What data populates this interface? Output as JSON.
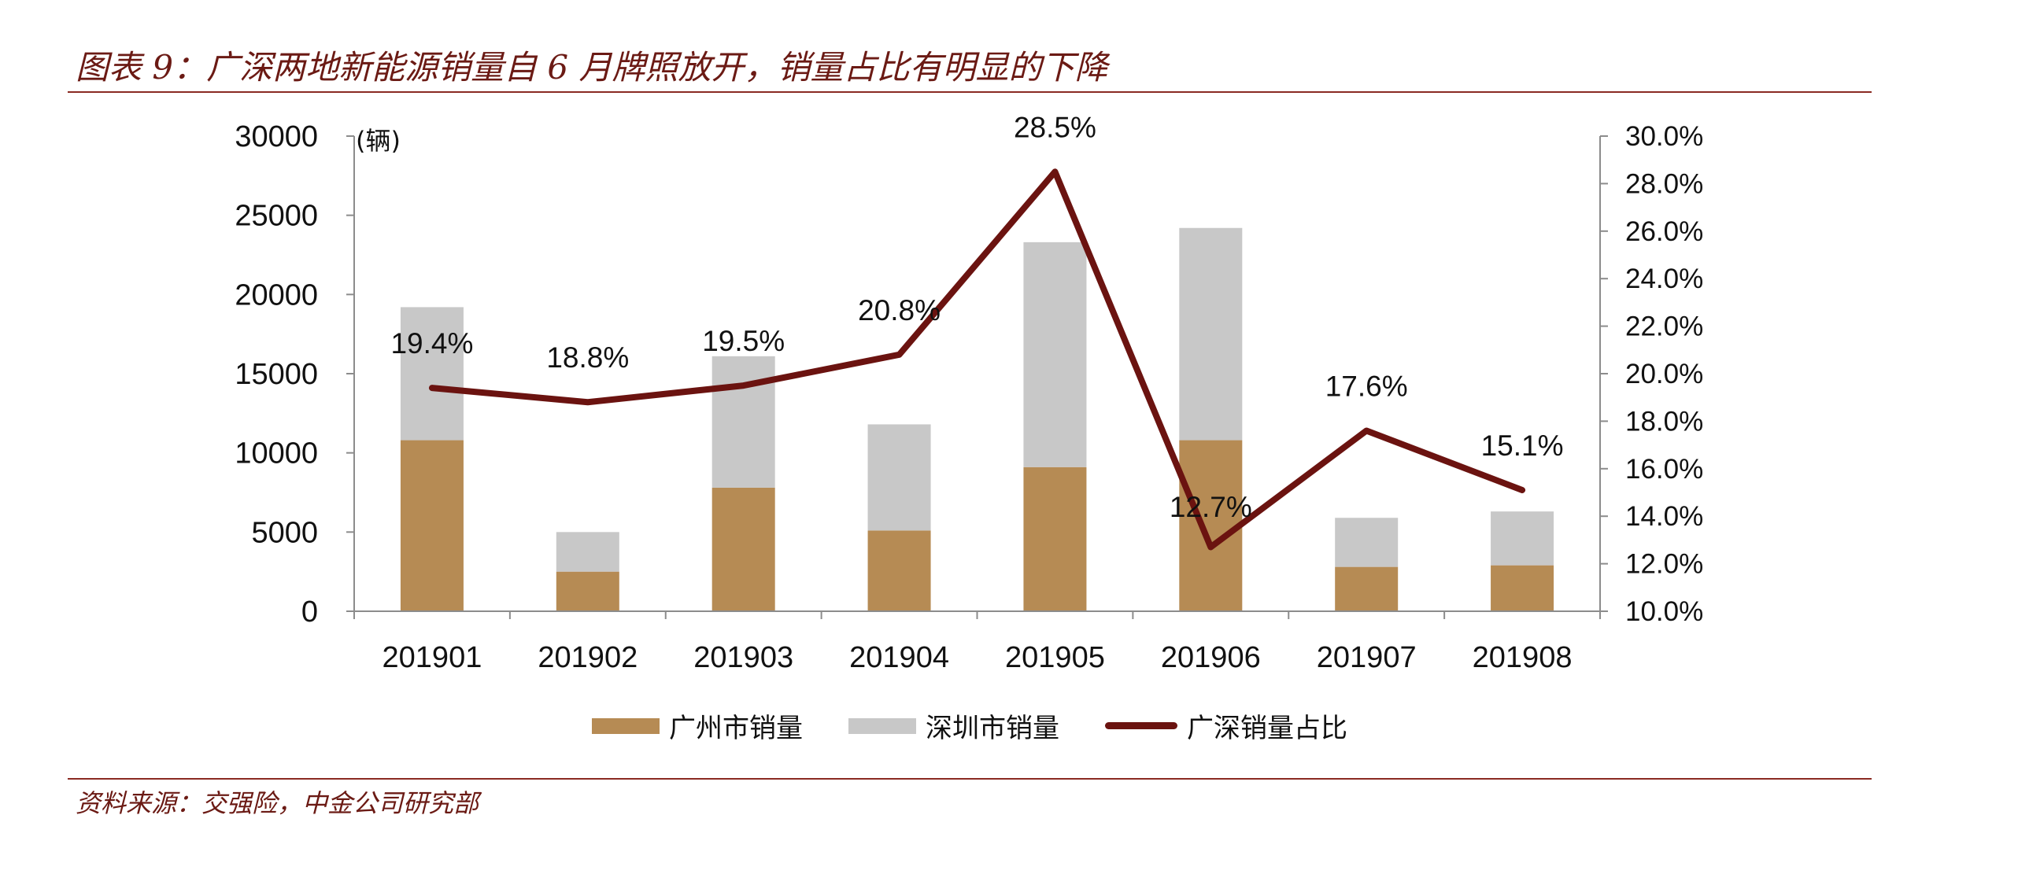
{
  "title": "图表 9：广深两地新能源销量自 6 月牌照放开，销量占比有明显的下降",
  "source": "资料来源：交强险，中金公司研究部",
  "colors": {
    "guangzhou": "#b68b54",
    "shenzhen": "#c8c8c8",
    "share": "#6b1310",
    "rule": "#8a2a22",
    "axis": "#8c8c8c"
  },
  "chart_data": {
    "type": "bar",
    "stacked": true,
    "unit_label": "(辆)",
    "categories": [
      "201901",
      "201902",
      "201903",
      "201904",
      "201905",
      "201906",
      "201907",
      "201908"
    ],
    "series": [
      {
        "name": "广州市销量",
        "type": "bar",
        "axis": "left",
        "values": [
          10800,
          2500,
          7800,
          5100,
          9100,
          10800,
          2800,
          2900
        ]
      },
      {
        "name": "深圳市销量",
        "type": "bar",
        "axis": "left",
        "values": [
          8400,
          2500,
          8300,
          6700,
          14200,
          13400,
          3100,
          3400
        ]
      },
      {
        "name": "广深销量占比",
        "type": "line",
        "axis": "right",
        "values": [
          19.4,
          18.8,
          19.5,
          20.8,
          28.5,
          12.7,
          17.6,
          15.1
        ],
        "labels": [
          "19.4%",
          "18.8%",
          "19.5%",
          "20.8%",
          "28.5%",
          "12.7%",
          "17.6%",
          "15.1%"
        ]
      }
    ],
    "y_left": {
      "min": 0,
      "max": 30000,
      "ticks": [
        "0",
        "5000",
        "10000",
        "15000",
        "20000",
        "25000",
        "30000"
      ]
    },
    "y_right": {
      "min": 10,
      "max": 30,
      "ticks": [
        "10.0%",
        "12.0%",
        "14.0%",
        "16.0%",
        "18.0%",
        "20.0%",
        "22.0%",
        "24.0%",
        "26.0%",
        "28.0%",
        "30.0%"
      ]
    },
    "grid": false,
    "legend_position": "bottom"
  }
}
